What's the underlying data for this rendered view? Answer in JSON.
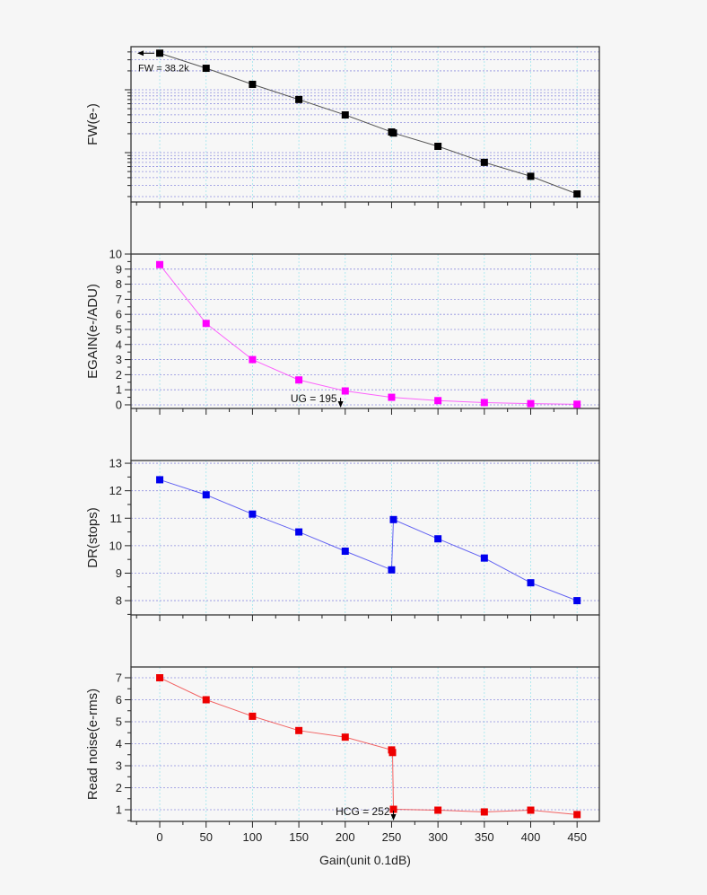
{
  "chart_data": {
    "type": "line",
    "xlabel": "Gain(unit 0.1dB)",
    "xlim": [
      -31,
      474
    ],
    "xticks": [
      0,
      50,
      100,
      150,
      200,
      250,
      300,
      350,
      400,
      450
    ],
    "grid": true,
    "panels": [
      {
        "ylabel": "FW(e-)",
        "yscale": "log",
        "ylim": [
          164,
          48500
        ],
        "yticks_labeled": false,
        "color": "#000000",
        "x": [
          0,
          50,
          100,
          150,
          200,
          250,
          252,
          300,
          350,
          400,
          450
        ],
        "y": [
          38200,
          22000,
          12200,
          7000,
          3980,
          2130,
          2050,
          1260,
          700,
          420,
          220
        ],
        "annotation": {
          "text": "FW = 38.2k",
          "x": 0,
          "y": 38200,
          "arrow": "left"
        }
      },
      {
        "ylabel": "EGAIN(e-/ADU)",
        "yscale": "linear",
        "ylim": [
          -0.24,
          10
        ],
        "yticks": [
          0,
          1,
          2,
          3,
          4,
          5,
          6,
          7,
          8,
          9,
          10
        ],
        "color": "#ff00ff",
        "x": [
          0,
          50,
          100,
          150,
          200,
          250,
          300,
          350,
          400,
          450
        ],
        "y": [
          9.3,
          5.4,
          3.0,
          1.65,
          0.92,
          0.5,
          0.28,
          0.15,
          0.08,
          0.04
        ],
        "annotation": {
          "text": "UG = 195",
          "x": 195,
          "arrow": "down"
        }
      },
      {
        "ylabel": "DR(stops)",
        "yscale": "linear",
        "ylim": [
          7.48,
          13.1
        ],
        "yticks": [
          8,
          9,
          10,
          11,
          12,
          13
        ],
        "color": "#0000ee",
        "x": [
          0,
          50,
          100,
          150,
          200,
          250,
          252,
          300,
          350,
          400,
          450
        ],
        "y": [
          12.4,
          11.85,
          11.15,
          10.5,
          9.8,
          9.12,
          10.95,
          10.25,
          9.55,
          8.65,
          8.0
        ]
      },
      {
        "ylabel": "Read noise(e-rms)",
        "yscale": "linear",
        "ylim": [
          0.47,
          7.49
        ],
        "yticks": [
          1,
          2,
          3,
          4,
          5,
          6,
          7
        ],
        "color": "#ee0000",
        "x": [
          0,
          50,
          100,
          150,
          200,
          250,
          251,
          252,
          300,
          350,
          400,
          450
        ],
        "y": [
          7.0,
          6.0,
          5.25,
          4.6,
          4.3,
          3.72,
          3.6,
          1.02,
          0.98,
          0.9,
          0.98,
          0.78
        ],
        "annotation": {
          "text": "HCG = 252",
          "x": 252,
          "arrow": "down"
        }
      }
    ]
  }
}
